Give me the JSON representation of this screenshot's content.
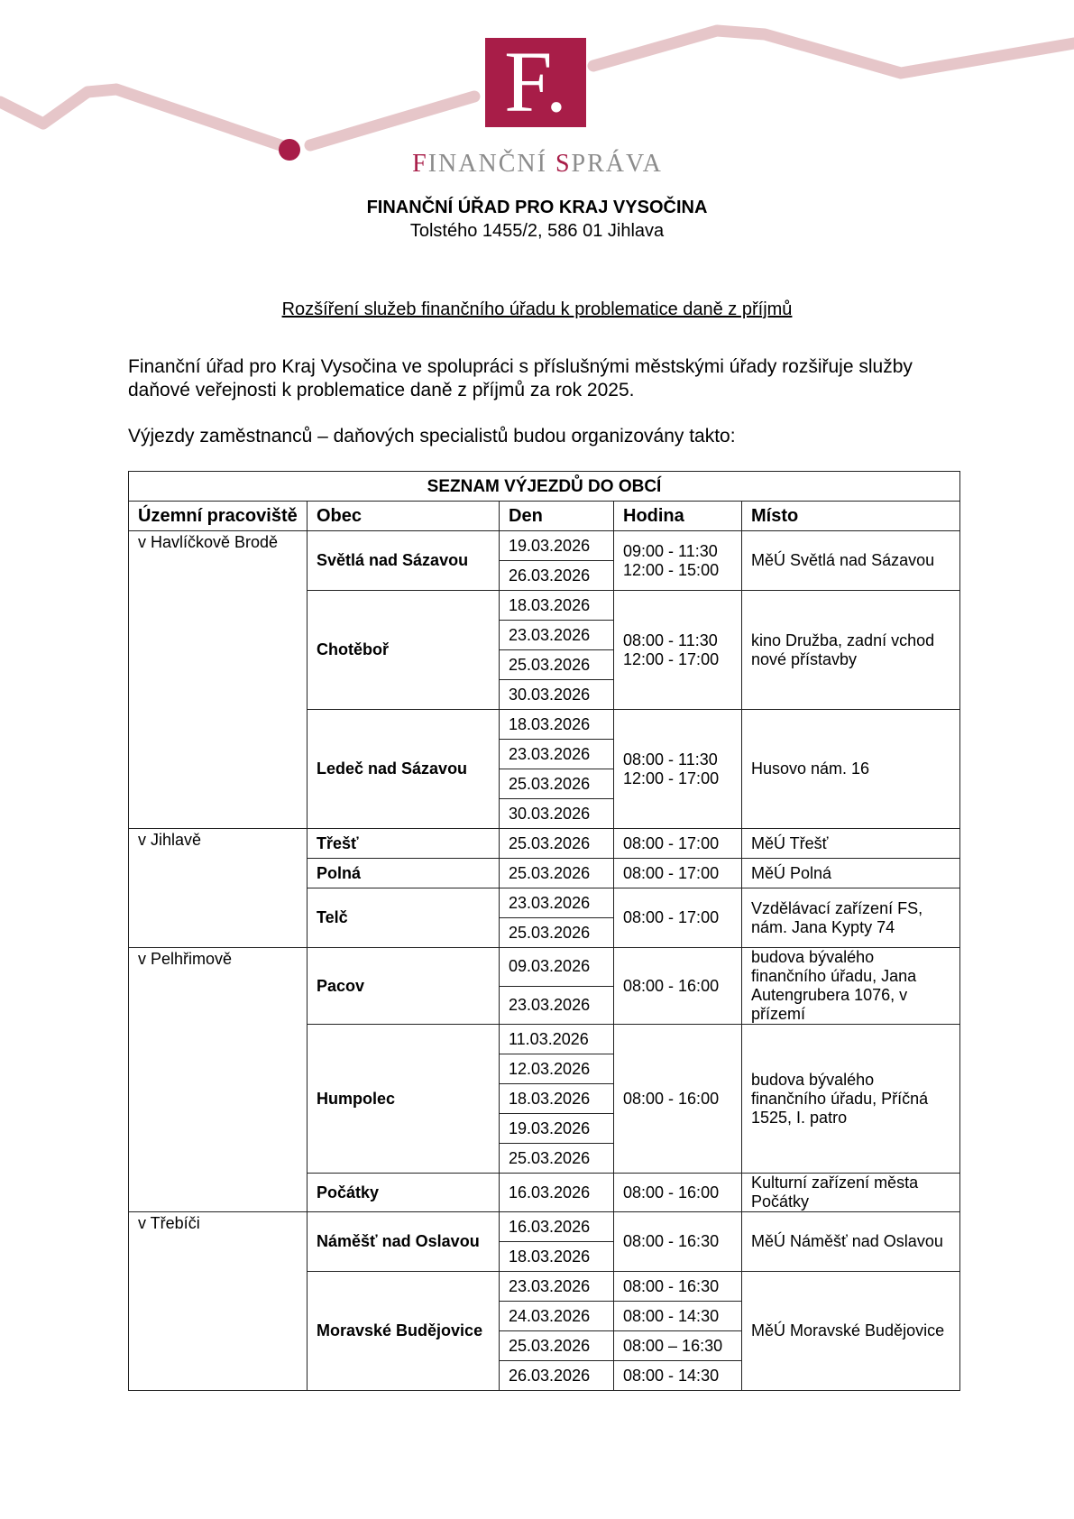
{
  "logo": {
    "letter": "F.",
    "brand_first": "F",
    "brand_mid": "INANČNÍ ",
    "brand_s": "S",
    "brand_rest": "PRÁVA",
    "accent": "#a81d48",
    "wave": "#e6c6c9"
  },
  "header": {
    "office": "FINANČNÍ ÚŘAD PRO KRAJ VYSOČINA",
    "address": "Tolstého 1455/2, 586 01 Jihlava"
  },
  "title": "Rozšíření služeb finančního úřadu k problematice daně z příjmů",
  "paragraph1": "Finanční úřad pro Kraj Vysočina ve spolupráci s příslušnými městskými úřady rozšiřuje služby daňové veřejnosti k problematice daně z příjmů za rok 2025.",
  "paragraph2": "Výjezdy zaměstnanců – daňových specialistů budou organizovány takto:",
  "table": {
    "caption": "SEZNAM VÝJEZDŮ DO OBCÍ",
    "headers": [
      "Územní pracoviště",
      "Obec",
      "Den",
      "Hodina",
      "Místo"
    ],
    "regions": [
      {
        "name": "v Havlíčkově Brodě",
        "towns": [
          {
            "obec": "Světlá nad Sázavou",
            "dates": [
              "19.03.2026",
              "26.03.2026"
            ],
            "hours": [
              "09:00 - 11:30\n12:00 - 15:00"
            ],
            "place": "MěÚ Světlá nad Sázavou"
          },
          {
            "obec": "Chotěboř",
            "dates": [
              "18.03.2026",
              "23.03.2026",
              "25.03.2026",
              "30.03.2026"
            ],
            "hours": [
              "08:00 - 11:30\n12:00 - 17:00"
            ],
            "place": "kino Družba, zadní vchod nové přístavby"
          },
          {
            "obec": "Ledeč nad Sázavou",
            "dates": [
              "18.03.2026",
              "23.03.2026",
              "25.03.2026",
              "30.03.2026"
            ],
            "hours": [
              "08:00 - 11:30\n12:00 - 17:00"
            ],
            "place": "Husovo nám. 16"
          }
        ]
      },
      {
        "name": "v Jihlavě",
        "towns": [
          {
            "obec": "Třešť",
            "dates": [
              "25.03.2026"
            ],
            "hours": [
              "08:00 - 17:00"
            ],
            "place": "MěÚ Třešť"
          },
          {
            "obec": "Polná",
            "dates": [
              "25.03.2026"
            ],
            "hours": [
              "08:00 - 17:00"
            ],
            "place": "MěÚ Polná"
          },
          {
            "obec": "Telč",
            "dates": [
              "23.03.2026",
              "25.03.2026"
            ],
            "hours": [
              "08:00 - 17:00"
            ],
            "place": "Vzdělávací zařízení FS, nám. Jana Kypty 74"
          }
        ]
      },
      {
        "name": "v Pelhřimově",
        "towns": [
          {
            "obec": "Pacov",
            "dates": [
              "09.03.2026",
              "23.03.2026"
            ],
            "hours": [
              "08:00 - 16:00"
            ],
            "place": "budova bývalého finančního úřadu, Jana Autengrubera 1076, v přízemí",
            "tall": true
          },
          {
            "obec": "Humpolec",
            "dates": [
              "11.03.2026",
              "12.03.2026",
              "18.03.2026",
              "19.03.2026",
              "25.03.2026"
            ],
            "hours": [
              "08:00 - 16:00"
            ],
            "place": "budova bývalého finančního úřadu, Příčná 1525, I. patro"
          },
          {
            "obec": "Počátky",
            "dates": [
              "16.03.2026"
            ],
            "hours": [
              "08:00 - 16:00"
            ],
            "place": "Kulturní zařízení města Počátky",
            "tall": true
          }
        ]
      },
      {
        "name": "v Třebíči",
        "towns": [
          {
            "obec": "Náměšť nad Oslavou",
            "dates": [
              "16.03.2026",
              "18.03.2026"
            ],
            "hours": [
              "08:00 - 16:30"
            ],
            "place": "MěÚ Náměšť nad Oslavou"
          },
          {
            "obec": "Moravské Budějovice",
            "dates": [
              "23.03.2026",
              "24.03.2026",
              "25.03.2026",
              "26.03.2026"
            ],
            "hours": [
              "08:00 - 16:30",
              "08:00 - 14:30",
              "08:00 – 16:30",
              "08:00 - 14:30"
            ],
            "place": "MěÚ Moravské Budějovice"
          }
        ]
      }
    ]
  }
}
